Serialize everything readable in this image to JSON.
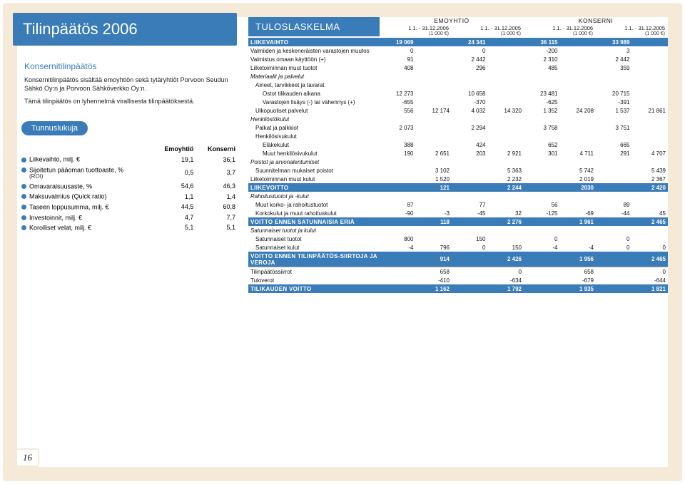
{
  "page": {
    "title": "Tilinpäätös 2006",
    "number": "16",
    "border_color": "#f5e9d8",
    "accent_color": "#3a7cb8"
  },
  "left": {
    "section_heading": "Konsernitilinpäätös",
    "para1": "Konsernitilinpäätös sisältää emoyhtiön sekä tytäryhtiöt Porvoon Seudun Sähkö Oy:n ja Porvoon Sähköverkko Oy:n.",
    "para2": "Tämä tilinpäätös on lyhennelmä virallisesta tilinpäätöksestä.",
    "pill": "Tunnuslukuja",
    "kpi_headers": [
      "",
      "Emoyhtiö",
      "Konserni"
    ],
    "kpi_rows": [
      {
        "label": "Liikevaihto, milj. €",
        "c1": "19,1",
        "c2": "36,1"
      },
      {
        "label": "Sijoitetun pääoman tuottoaste, %",
        "sublabel": "(ROI)",
        "c1": "0,5",
        "c2": "3,7"
      },
      {
        "label": "Omavaraisuusaste, %",
        "c1": "54,6",
        "c2": "46,3"
      },
      {
        "label": "Maksuvalmius (Quick ratio)",
        "c1": "1,1",
        "c2": "1,4"
      },
      {
        "label": "Taseen loppusumma, milj. €",
        "c1": "44,5",
        "c2": "60,8"
      },
      {
        "label": "Investoinnit, milj. €",
        "c1": "4,7",
        "c2": "7,7"
      },
      {
        "label": "Korolliset velat, milj. €",
        "c1": "5,1",
        "c2": "5,1"
      }
    ]
  },
  "is": {
    "title": "TULOSLASKELMA",
    "groups": [
      "EMOYHTIÖ",
      "KONSERNI"
    ],
    "periods": [
      "1.1. - 31.12.2006",
      "1.1. - 31.12.2005",
      "1.1. - 31.12.2006",
      "1.1. - 31.12.2005"
    ],
    "unit": "(1 000 €)",
    "rows": [
      {
        "class": "blue",
        "label": "LIIKEVAIHTO",
        "v": [
          "19 069",
          "",
          "24 341",
          "",
          "36 115",
          "",
          "33 989",
          ""
        ]
      },
      {
        "label": "Valmiiden ja keskeneräisten varastojen muutos",
        "v": [
          "0",
          "",
          "0",
          "",
          "-200",
          "",
          "3",
          ""
        ]
      },
      {
        "label": "Valmistus omaan käyttöön (+)",
        "v": [
          "91",
          "",
          "2 442",
          "",
          "2 310",
          "",
          "2 442",
          ""
        ]
      },
      {
        "label": "Liiketoiminnan muut tuotot",
        "v": [
          "408",
          "",
          "296",
          "",
          "485",
          "",
          "359",
          ""
        ]
      },
      {
        "class": "italic",
        "label": "Materiaalit ja palvelut",
        "v": [
          "",
          "",
          "",
          "",
          "",
          "",
          "",
          ""
        ]
      },
      {
        "indent": 1,
        "label": "Aineet, tarvikkeet ja tavarat",
        "v": [
          "",
          "",
          "",
          "",
          "",
          "",
          "",
          ""
        ]
      },
      {
        "indent": 2,
        "label": "Ostot tilikauden aikana",
        "v": [
          "12 273",
          "",
          "10 658",
          "",
          "23 481",
          "",
          "20 715",
          ""
        ]
      },
      {
        "indent": 2,
        "label": "Varastojen lisäys (-) tai vähennys (+)",
        "v": [
          "-655",
          "",
          "-370",
          "",
          "-625",
          "",
          "-391",
          ""
        ]
      },
      {
        "indent": 1,
        "label": "Ulkopuoliset palvelut",
        "v": [
          "556",
          "12 174",
          "4 032",
          "14 320",
          "1 352",
          "24 208",
          "1 537",
          "21 861"
        ]
      },
      {
        "class": "italic",
        "label": "Henkilöstökulut",
        "v": [
          "",
          "",
          "",
          "",
          "",
          "",
          "",
          ""
        ]
      },
      {
        "indent": 1,
        "label": "Palkat ja palkkiot",
        "v": [
          "2 073",
          "",
          "2 294",
          "",
          "3 758",
          "",
          "3 751",
          ""
        ]
      },
      {
        "indent": 1,
        "label": "Henkilösivukulut",
        "v": [
          "",
          "",
          "",
          "",
          "",
          "",
          "",
          ""
        ]
      },
      {
        "indent": 2,
        "label": "Eläkekulut",
        "v": [
          "388",
          "",
          "424",
          "",
          "652",
          "",
          "665",
          ""
        ]
      },
      {
        "indent": 2,
        "label": "Muut henkilösivukulut",
        "v": [
          "190",
          "2 651",
          "203",
          "2 921",
          "301",
          "4 711",
          "291",
          "4 707"
        ]
      },
      {
        "class": "italic",
        "label": "Poistot ja arvonalentumiset",
        "v": [
          "",
          "",
          "",
          "",
          "",
          "",
          "",
          ""
        ]
      },
      {
        "indent": 1,
        "label": "Suunnitelman mukaiset poistot",
        "v": [
          "",
          "3 102",
          "",
          "5 363",
          "",
          "5 742",
          "",
          "5 439"
        ]
      },
      {
        "label": "Liiketoiminnan muut kulut",
        "v": [
          "",
          "1 520",
          "",
          "2 232",
          "",
          "2 019",
          "",
          "2 367"
        ]
      },
      {
        "class": "blue",
        "label": "LIIKEVOITTO",
        "v": [
          "",
          "121",
          "",
          "2 244",
          "",
          "2030",
          "",
          "2 420"
        ]
      },
      {
        "class": "italic",
        "label": "Rahoitustuotot ja -kulut",
        "v": [
          "",
          "",
          "",
          "",
          "",
          "",
          "",
          ""
        ]
      },
      {
        "indent": 1,
        "label": "Muut korko- ja rahoitustuotot",
        "v": [
          "87",
          "",
          "77",
          "",
          "56",
          "",
          "89",
          ""
        ]
      },
      {
        "indent": 1,
        "label": "Korkokulut ja muut rahoituskulut",
        "v": [
          "-90",
          "-3",
          "-45",
          "32",
          "-125",
          "-69",
          "-44",
          "45"
        ]
      },
      {
        "class": "blue",
        "label": "VOITTO ENNEN SATUNNAISIA ERIÄ",
        "v": [
          "",
          "118",
          "",
          "2 276",
          "",
          "1 961",
          "",
          "2 465"
        ]
      },
      {
        "class": "italic",
        "label": "Satunnaiset tuotot ja kulut",
        "v": [
          "",
          "",
          "",
          "",
          "",
          "",
          "",
          ""
        ]
      },
      {
        "indent": 1,
        "label": "Satunnaiset tuotot",
        "v": [
          "800",
          "",
          "150",
          "",
          "0",
          "",
          "0",
          ""
        ]
      },
      {
        "indent": 1,
        "label": "Satunnaiset kulut",
        "v": [
          "-4",
          "796",
          "0",
          "150",
          "-4",
          "-4",
          "0",
          "0"
        ]
      },
      {
        "class": "blue",
        "label": "VOITTO ENNEN TILINPÄÄTÖS-SIIRTOJA JA VEROJA",
        "v": [
          "",
          "914",
          "",
          "2 426",
          "",
          "1 956",
          "",
          "2 465"
        ]
      },
      {
        "class": "hr",
        "label": "Tilinpäätössiirrot",
        "v": [
          "",
          "658",
          "",
          "0",
          "",
          "658",
          "",
          "0"
        ]
      },
      {
        "label": "Tuloverot",
        "v": [
          "",
          "-410",
          "",
          "-634",
          "",
          "-679",
          "",
          "-644"
        ]
      },
      {
        "class": "blue",
        "label": "TILIKAUDEN VOITTO",
        "v": [
          "",
          "1 162",
          "",
          "1 792",
          "",
          "1 935",
          "",
          "1 821"
        ]
      }
    ]
  }
}
